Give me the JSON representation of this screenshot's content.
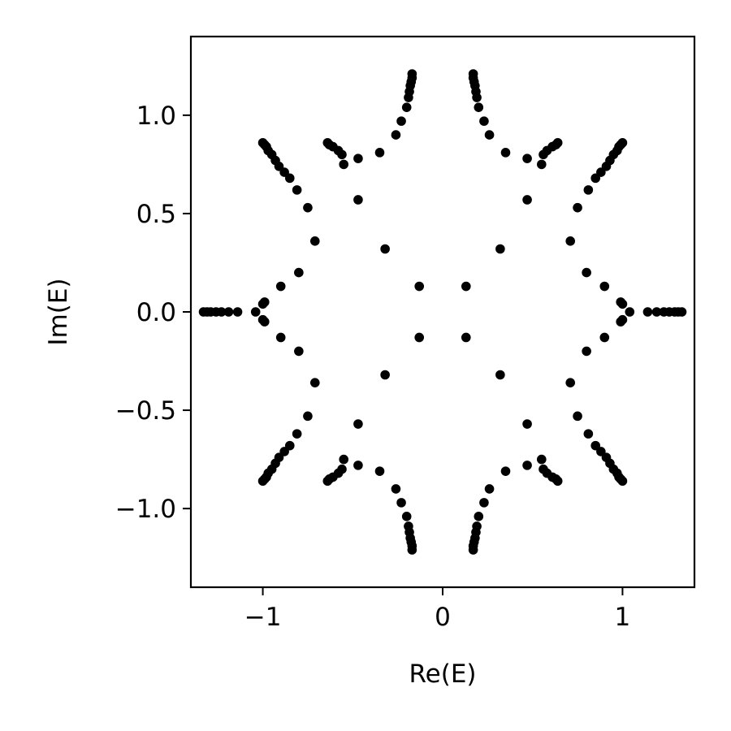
{
  "chart_data": {
    "type": "scatter",
    "title": "",
    "xlabel": "Re(E)",
    "ylabel": "Im(E)",
    "xlim": [
      -1.4,
      1.4
    ],
    "ylim": [
      -1.4,
      1.4
    ],
    "xticks": [
      -1,
      0,
      1
    ],
    "xtick_labels": [
      "−1",
      "0",
      "1"
    ],
    "yticks": [
      1.0,
      0.5,
      0.0,
      -0.5,
      -1.0
    ],
    "ytick_labels": [
      "1.0",
      "0.5",
      "0.0",
      "−0.5",
      "−1.0"
    ],
    "grid": false,
    "legend": "none",
    "marker_color": "#000000",
    "series": [
      {
        "points": [
          [
            -1.33,
            0.0
          ],
          [
            -1.31,
            0.0
          ],
          [
            -1.29,
            0.0
          ],
          [
            -1.26,
            0.0
          ],
          [
            -1.23,
            0.0
          ],
          [
            -1.19,
            0.0
          ],
          [
            -1.14,
            0.0
          ],
          [
            -1.04,
            0.0
          ],
          [
            1.33,
            0.0
          ],
          [
            1.31,
            0.0
          ],
          [
            1.29,
            0.0
          ],
          [
            1.26,
            0.0
          ],
          [
            1.23,
            0.0
          ],
          [
            1.19,
            0.0
          ],
          [
            1.14,
            0.0
          ],
          [
            1.04,
            0.0
          ],
          [
            -1.0,
            0.04
          ],
          [
            -0.99,
            0.05
          ],
          [
            -0.9,
            0.13
          ],
          [
            -0.8,
            0.2
          ],
          [
            -1.0,
            -0.04
          ],
          [
            -0.99,
            -0.05
          ],
          [
            -0.9,
            -0.13
          ],
          [
            -0.8,
            -0.2
          ],
          [
            1.0,
            0.04
          ],
          [
            0.99,
            0.05
          ],
          [
            0.9,
            0.13
          ],
          [
            0.8,
            0.2
          ],
          [
            1.0,
            -0.04
          ],
          [
            0.99,
            -0.05
          ],
          [
            0.9,
            -0.13
          ],
          [
            0.8,
            -0.2
          ],
          [
            -1.0,
            0.86
          ],
          [
            -0.99,
            0.85
          ],
          [
            -0.98,
            0.84
          ],
          [
            -0.97,
            0.82
          ],
          [
            -0.95,
            0.8
          ],
          [
            -0.93,
            0.77
          ],
          [
            -0.91,
            0.74
          ],
          [
            -0.88,
            0.71
          ],
          [
            -0.85,
            0.68
          ],
          [
            -0.81,
            0.62
          ],
          [
            -0.75,
            0.53
          ],
          [
            -0.71,
            0.36
          ],
          [
            1.0,
            0.86
          ],
          [
            0.99,
            0.85
          ],
          [
            0.98,
            0.84
          ],
          [
            0.97,
            0.82
          ],
          [
            0.95,
            0.8
          ],
          [
            0.93,
            0.77
          ],
          [
            0.91,
            0.74
          ],
          [
            0.88,
            0.71
          ],
          [
            0.85,
            0.68
          ],
          [
            0.81,
            0.62
          ],
          [
            0.75,
            0.53
          ],
          [
            0.71,
            0.36
          ],
          [
            -1.0,
            -0.86
          ],
          [
            -0.99,
            -0.85
          ],
          [
            -0.98,
            -0.84
          ],
          [
            -0.97,
            -0.82
          ],
          [
            -0.95,
            -0.8
          ],
          [
            -0.93,
            -0.77
          ],
          [
            -0.91,
            -0.74
          ],
          [
            -0.88,
            -0.71
          ],
          [
            -0.85,
            -0.68
          ],
          [
            -0.81,
            -0.62
          ],
          [
            -0.75,
            -0.53
          ],
          [
            -0.71,
            -0.36
          ],
          [
            1.0,
            -0.86
          ],
          [
            0.99,
            -0.85
          ],
          [
            0.98,
            -0.84
          ],
          [
            0.97,
            -0.82
          ],
          [
            0.95,
            -0.8
          ],
          [
            0.93,
            -0.77
          ],
          [
            0.91,
            -0.74
          ],
          [
            0.88,
            -0.71
          ],
          [
            0.85,
            -0.68
          ],
          [
            0.81,
            -0.62
          ],
          [
            0.75,
            -0.53
          ],
          [
            0.71,
            -0.36
          ],
          [
            -0.64,
            0.86
          ],
          [
            -0.63,
            0.85
          ],
          [
            -0.61,
            0.84
          ],
          [
            -0.58,
            0.82
          ],
          [
            -0.56,
            0.8
          ],
          [
            -0.55,
            0.75
          ],
          [
            -0.47,
            0.78
          ],
          [
            -0.35,
            0.81
          ],
          [
            -0.47,
            0.57
          ],
          [
            -0.32,
            0.32
          ],
          [
            0.64,
            0.86
          ],
          [
            0.63,
            0.85
          ],
          [
            0.61,
            0.84
          ],
          [
            0.58,
            0.82
          ],
          [
            0.56,
            0.8
          ],
          [
            0.55,
            0.75
          ],
          [
            0.47,
            0.78
          ],
          [
            0.35,
            0.81
          ],
          [
            0.47,
            0.57
          ],
          [
            0.32,
            0.32
          ],
          [
            -0.64,
            -0.86
          ],
          [
            -0.63,
            -0.85
          ],
          [
            -0.61,
            -0.84
          ],
          [
            -0.58,
            -0.82
          ],
          [
            -0.56,
            -0.8
          ],
          [
            -0.55,
            -0.75
          ],
          [
            -0.47,
            -0.78
          ],
          [
            -0.35,
            -0.81
          ],
          [
            -0.47,
            -0.57
          ],
          [
            -0.32,
            -0.32
          ],
          [
            0.64,
            -0.86
          ],
          [
            0.63,
            -0.85
          ],
          [
            0.61,
            -0.84
          ],
          [
            0.58,
            -0.82
          ],
          [
            0.56,
            -0.8
          ],
          [
            0.55,
            -0.75
          ],
          [
            0.47,
            -0.78
          ],
          [
            0.35,
            -0.81
          ],
          [
            0.47,
            -0.57
          ],
          [
            0.32,
            -0.32
          ],
          [
            -0.17,
            1.21
          ],
          [
            -0.17,
            1.19
          ],
          [
            -0.175,
            1.17
          ],
          [
            -0.18,
            1.15
          ],
          [
            -0.185,
            1.12
          ],
          [
            -0.19,
            1.09
          ],
          [
            -0.2,
            1.04
          ],
          [
            -0.23,
            0.97
          ],
          [
            -0.26,
            0.9
          ],
          [
            0.17,
            1.21
          ],
          [
            0.17,
            1.19
          ],
          [
            0.175,
            1.17
          ],
          [
            0.18,
            1.15
          ],
          [
            0.185,
            1.12
          ],
          [
            0.19,
            1.09
          ],
          [
            0.2,
            1.04
          ],
          [
            0.23,
            0.97
          ],
          [
            0.26,
            0.9
          ],
          [
            -0.17,
            -1.21
          ],
          [
            -0.17,
            -1.19
          ],
          [
            -0.175,
            -1.17
          ],
          [
            -0.18,
            -1.15
          ],
          [
            -0.185,
            -1.12
          ],
          [
            -0.19,
            -1.09
          ],
          [
            -0.2,
            -1.04
          ],
          [
            -0.23,
            -0.97
          ],
          [
            -0.26,
            -0.9
          ],
          [
            0.17,
            -1.21
          ],
          [
            0.17,
            -1.19
          ],
          [
            0.175,
            -1.17
          ],
          [
            0.18,
            -1.15
          ],
          [
            0.185,
            -1.12
          ],
          [
            0.19,
            -1.09
          ],
          [
            0.2,
            -1.04
          ],
          [
            0.23,
            -0.97
          ],
          [
            0.26,
            -0.9
          ],
          [
            -0.13,
            0.13
          ],
          [
            0.13,
            0.13
          ],
          [
            -0.13,
            -0.13
          ],
          [
            0.13,
            -0.13
          ]
        ]
      }
    ]
  }
}
